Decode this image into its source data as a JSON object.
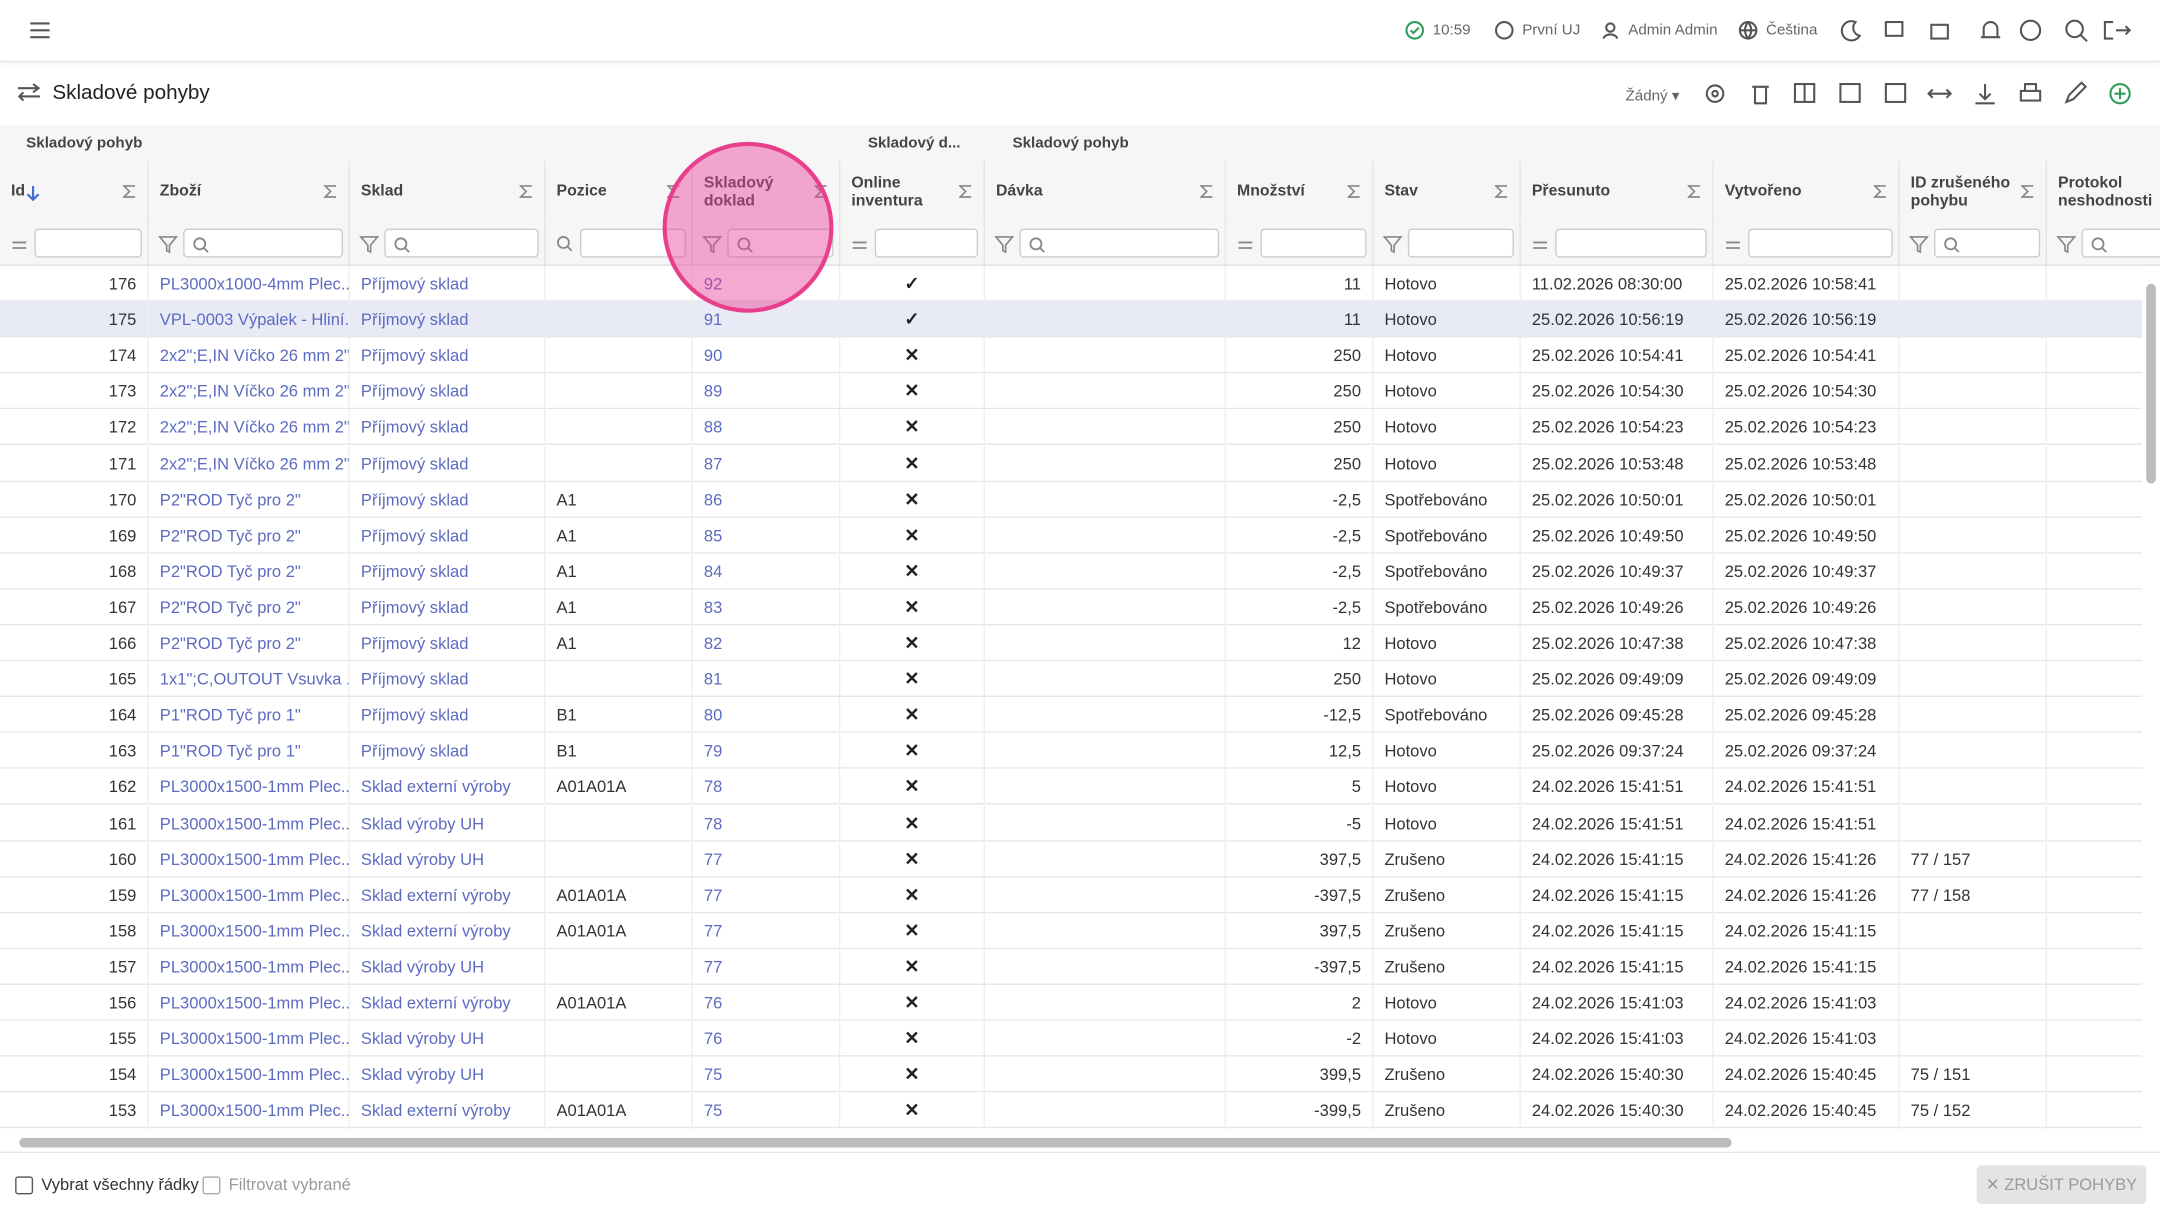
{
  "topbar": {
    "time": "10:59",
    "company": "První UJ",
    "user": "Admin Admin",
    "language": "Čeština"
  },
  "toolbar": {
    "title": "Skladové pohyby",
    "view": "Žádný"
  },
  "group_headers": [
    "Skladový pohyb",
    "Skladový d...",
    "Skladový pohyb"
  ],
  "table": {
    "columns": [
      "Id",
      "Zboží",
      "Sklad",
      "Pozice",
      "Skladový doklad",
      "Online inventura",
      "Dávka",
      "Množství",
      "Stav",
      "Přesunuto",
      "Vytvořeno",
      "ID zrušeného pohybu",
      "Protokol neshodnosti"
    ],
    "rows": [
      [
        "176",
        "PL3000x1000-4mm Plec...",
        "Příjmový sklad",
        "",
        "92",
        "✓",
        "",
        "11",
        "Hotovo",
        "11.02.2026 08:30:00",
        "25.02.2026 10:58:41",
        "",
        ""
      ],
      [
        "175",
        "VPL-0003 Výpalek - Hliní...",
        "Příjmový sklad",
        "",
        "91",
        "✓",
        "",
        "11",
        "Hotovo",
        "25.02.2026 10:56:19",
        "25.02.2026 10:56:19",
        "",
        ""
      ],
      [
        "174",
        "2x2\";E,IN Víčko 26 mm 2\"",
        "Příjmový sklad",
        "",
        "90",
        "✕",
        "",
        "250",
        "Hotovo",
        "25.02.2026 10:54:41",
        "25.02.2026 10:54:41",
        "",
        ""
      ],
      [
        "173",
        "2x2\";E,IN Víčko 26 mm 2\"",
        "Příjmový sklad",
        "",
        "89",
        "✕",
        "",
        "250",
        "Hotovo",
        "25.02.2026 10:54:30",
        "25.02.2026 10:54:30",
        "",
        ""
      ],
      [
        "172",
        "2x2\";E,IN Víčko 26 mm 2\"",
        "Příjmový sklad",
        "",
        "88",
        "✕",
        "",
        "250",
        "Hotovo",
        "25.02.2026 10:54:23",
        "25.02.2026 10:54:23",
        "",
        ""
      ],
      [
        "171",
        "2x2\";E,IN Víčko 26 mm 2\"",
        "Příjmový sklad",
        "",
        "87",
        "✕",
        "",
        "250",
        "Hotovo",
        "25.02.2026 10:53:48",
        "25.02.2026 10:53:48",
        "",
        ""
      ],
      [
        "170",
        "P2\"ROD Tyč pro 2\"",
        "Příjmový sklad",
        "A1",
        "86",
        "✕",
        "",
        "-2,5",
        "Spotřebováno",
        "25.02.2026 10:50:01",
        "25.02.2026 10:50:01",
        "",
        ""
      ],
      [
        "169",
        "P2\"ROD Tyč pro 2\"",
        "Příjmový sklad",
        "A1",
        "85",
        "✕",
        "",
        "-2,5",
        "Spotřebováno",
        "25.02.2026 10:49:50",
        "25.02.2026 10:49:50",
        "",
        ""
      ],
      [
        "168",
        "P2\"ROD Tyč pro 2\"",
        "Příjmový sklad",
        "A1",
        "84",
        "✕",
        "",
        "-2,5",
        "Spotřebováno",
        "25.02.2026 10:49:37",
        "25.02.2026 10:49:37",
        "",
        ""
      ],
      [
        "167",
        "P2\"ROD Tyč pro 2\"",
        "Příjmový sklad",
        "A1",
        "83",
        "✕",
        "",
        "-2,5",
        "Spotřebováno",
        "25.02.2026 10:49:26",
        "25.02.2026 10:49:26",
        "",
        ""
      ],
      [
        "166",
        "P2\"ROD Tyč pro 2\"",
        "Příjmový sklad",
        "A1",
        "82",
        "✕",
        "",
        "12",
        "Hotovo",
        "25.02.2026 10:47:38",
        "25.02.2026 10:47:38",
        "",
        ""
      ],
      [
        "165",
        "1x1\";C,OUTOUT Vsuvka ...",
        "Příjmový sklad",
        "",
        "81",
        "✕",
        "",
        "250",
        "Hotovo",
        "25.02.2026 09:49:09",
        "25.02.2026 09:49:09",
        "",
        ""
      ],
      [
        "164",
        "P1\"ROD Tyč pro 1\"",
        "Příjmový sklad",
        "B1",
        "80",
        "✕",
        "",
        "-12,5",
        "Spotřebováno",
        "25.02.2026 09:45:28",
        "25.02.2026 09:45:28",
        "",
        ""
      ],
      [
        "163",
        "P1\"ROD Tyč pro 1\"",
        "Příjmový sklad",
        "B1",
        "79",
        "✕",
        "",
        "12,5",
        "Hotovo",
        "25.02.2026 09:37:24",
        "25.02.2026 09:37:24",
        "",
        ""
      ],
      [
        "162",
        "PL3000x1500-1mm Plec...",
        "Sklad externí výroby",
        "A01A01A",
        "78",
        "✕",
        "",
        "5",
        "Hotovo",
        "24.02.2026 15:41:51",
        "24.02.2026 15:41:51",
        "",
        ""
      ],
      [
        "161",
        "PL3000x1500-1mm Plec...",
        "Sklad výroby UH",
        "",
        "78",
        "✕",
        "",
        "-5",
        "Hotovo",
        "24.02.2026 15:41:51",
        "24.02.2026 15:41:51",
        "",
        ""
      ],
      [
        "160",
        "PL3000x1500-1mm Plec...",
        "Sklad výroby UH",
        "",
        "77",
        "✕",
        "",
        "397,5",
        "Zrušeno",
        "24.02.2026 15:41:15",
        "24.02.2026 15:41:26",
        "77 / 157",
        ""
      ],
      [
        "159",
        "PL3000x1500-1mm Plec...",
        "Sklad externí výroby",
        "A01A01A",
        "77",
        "✕",
        "",
        "-397,5",
        "Zrušeno",
        "24.02.2026 15:41:15",
        "24.02.2026 15:41:26",
        "77 / 158",
        ""
      ],
      [
        "158",
        "PL3000x1500-1mm Plec...",
        "Sklad externí výroby",
        "A01A01A",
        "77",
        "✕",
        "",
        "397,5",
        "Zrušeno",
        "24.02.2026 15:41:15",
        "24.02.2026 15:41:15",
        "",
        ""
      ],
      [
        "157",
        "PL3000x1500-1mm Plec...",
        "Sklad výroby UH",
        "",
        "77",
        "✕",
        "",
        "-397,5",
        "Zrušeno",
        "24.02.2026 15:41:15",
        "24.02.2026 15:41:15",
        "",
        ""
      ],
      [
        "156",
        "PL3000x1500-1mm Plec...",
        "Sklad externí výroby",
        "A01A01A",
        "76",
        "✕",
        "",
        "2",
        "Hotovo",
        "24.02.2026 15:41:03",
        "24.02.2026 15:41:03",
        "",
        ""
      ],
      [
        "155",
        "PL3000x1500-1mm Plec...",
        "Sklad výroby UH",
        "",
        "76",
        "✕",
        "",
        "-2",
        "Hotovo",
        "24.02.2026 15:41:03",
        "24.02.2026 15:41:03",
        "",
        ""
      ],
      [
        "154",
        "PL3000x1500-1mm Plec...",
        "Sklad výroby UH",
        "",
        "75",
        "✕",
        "",
        "399,5",
        "Zrušeno",
        "24.02.2026 15:40:30",
        "24.02.2026 15:40:45",
        "75 / 151",
        ""
      ],
      [
        "153",
        "PL3000x1500-1mm Plec...",
        "Sklad externí výroby",
        "A01A01A",
        "75",
        "✕",
        "",
        "-399,5",
        "Zrušeno",
        "24.02.2026 15:40:30",
        "24.02.2026 15:40:45",
        "75 / 152",
        ""
      ]
    ]
  },
  "footer": {
    "select_all": "Vybrat všechny řádky",
    "filter_selected": "Filtrovat vybrané",
    "cancel_button": "✕ ZRUŠIT POHYBY"
  }
}
